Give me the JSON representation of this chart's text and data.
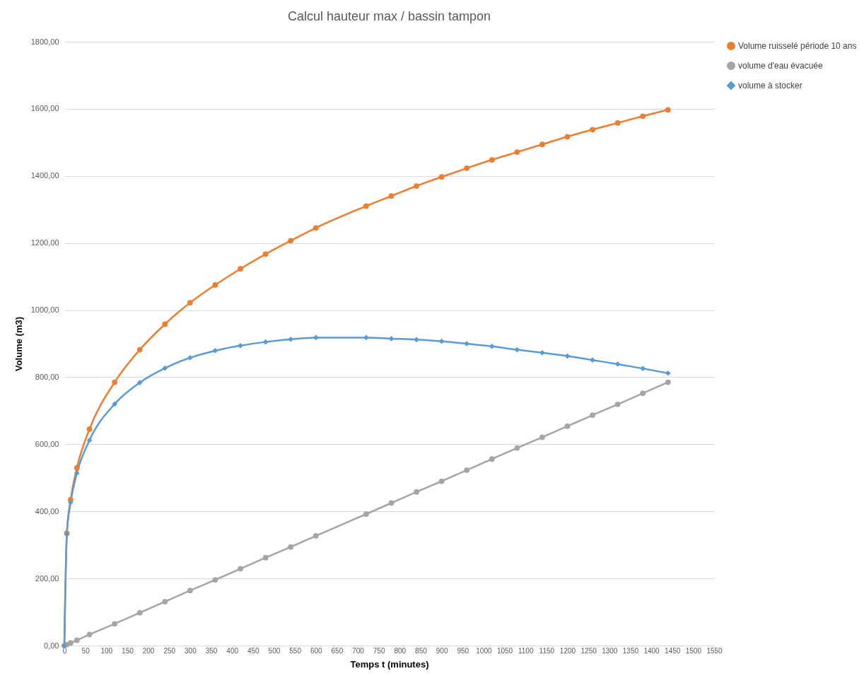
{
  "chart_data": {
    "type": "line",
    "title": "Calcul hauteur max / bassin tampon",
    "xlabel": "Temps t (minutes)",
    "ylabel": "Volume (m3)",
    "x": [
      0,
      6,
      15,
      30,
      60,
      120,
      180,
      240,
      300,
      360,
      420,
      480,
      540,
      600,
      720,
      780,
      840,
      900,
      960,
      1020,
      1080,
      1140,
      1200,
      1260,
      1320,
      1380,
      1440
    ],
    "series": [
      {
        "name": "Volume ruisselé période 10 ans",
        "color": "#ed7d31",
        "marker": "circle",
        "values": [
          0,
          335,
          435,
          530,
          645,
          785,
          882,
          958,
          1022,
          1075,
          1123,
          1167,
          1207,
          1245,
          1310,
          1340,
          1370,
          1397,
          1423,
          1448,
          1471,
          1494,
          1517,
          1538,
          1558,
          1578,
          1597
        ]
      },
      {
        "name": "volume d'eau évacuée",
        "color": "#a5a5a5",
        "marker": "circle",
        "values": [
          0,
          3,
          8,
          16,
          33,
          65,
          98,
          131,
          164,
          196,
          229,
          262,
          294,
          327,
          392,
          425,
          458,
          490,
          523,
          556,
          589,
          621,
          654,
          687,
          719,
          752,
          785
        ]
      },
      {
        "name": "volume à stocker",
        "color": "#5b9bd5",
        "marker": "diamond",
        "values": [
          0,
          332,
          427,
          514,
          612,
          720,
          784,
          827,
          858,
          879,
          894,
          905,
          913,
          918,
          918,
          915,
          912,
          907,
          900,
          892,
          882,
          873,
          863,
          851,
          839,
          826,
          812
        ]
      }
    ],
    "xlim": [
      0,
      1550
    ],
    "xticks": [
      0,
      50,
      100,
      150,
      200,
      250,
      300,
      350,
      400,
      450,
      500,
      550,
      600,
      650,
      700,
      750,
      800,
      850,
      900,
      950,
      1000,
      1050,
      1100,
      1150,
      1200,
      1250,
      1300,
      1350,
      1400,
      1450,
      1500,
      1550
    ],
    "ylim": [
      0,
      1800
    ],
    "yticks": [
      {
        "value": 0,
        "label": "0,00"
      },
      {
        "value": 200,
        "label": "200,00"
      },
      {
        "value": 400,
        "label": "400,00"
      },
      {
        "value": 600,
        "label": "600,00"
      },
      {
        "value": 800,
        "label": "800,00"
      },
      {
        "value": 1000,
        "label": "1000,00"
      },
      {
        "value": 1200,
        "label": "1200,00"
      },
      {
        "value": 1400,
        "label": "1400,00"
      },
      {
        "value": 1600,
        "label": "1600,00"
      },
      {
        "value": 1800,
        "label": "1800,00"
      }
    ],
    "grid": "y",
    "legend": "right",
    "line_style": "solid"
  }
}
